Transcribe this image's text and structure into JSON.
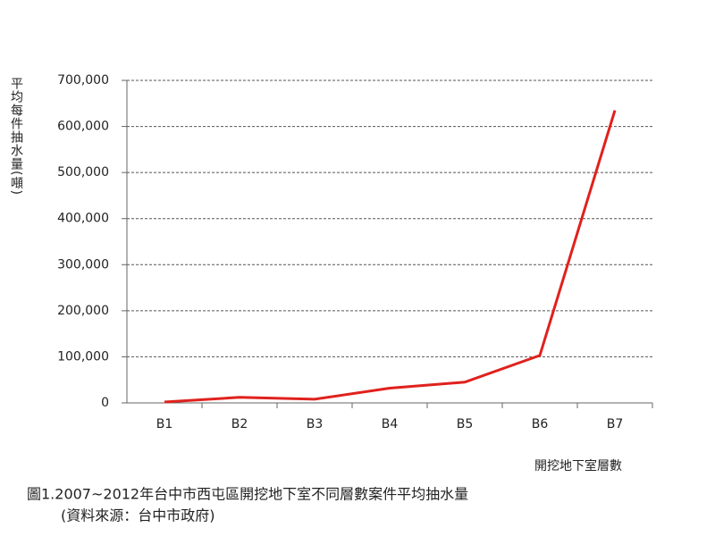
{
  "chart_data": {
    "type": "line",
    "title": "圖1.2007~2012年台中市西屯區開挖地下室不同層數案件平均抽水量",
    "subtitle": "(資料來源：台中市政府)",
    "y_label": "平均每件抽水量(噸)",
    "x_label": "開挖地下室層數",
    "categories": [
      "B1",
      "B2",
      "B3",
      "B4",
      "B5",
      "B6",
      "B7"
    ],
    "series": [
      {
        "name": "平均每件抽水量",
        "color": "#e0211d",
        "values": [
          2000,
          12000,
          8000,
          32000,
          45000,
          103000,
          635000
        ]
      }
    ],
    "ylim": [
      0,
      700000
    ],
    "yticks": [
      0,
      {
        "value": 100000,
        "label": "100,000"
      },
      {
        "value": 200000,
        "label": "200,000"
      },
      {
        "value": 300000,
        "label": "300,000"
      },
      {
        "value": 400000,
        "label": "400,000"
      },
      {
        "value": 500000,
        "label": "500,000"
      },
      {
        "value": 600000,
        "label": "600,000"
      },
      {
        "value": 700000,
        "label": "700,000"
      }
    ],
    "grid": true
  }
}
